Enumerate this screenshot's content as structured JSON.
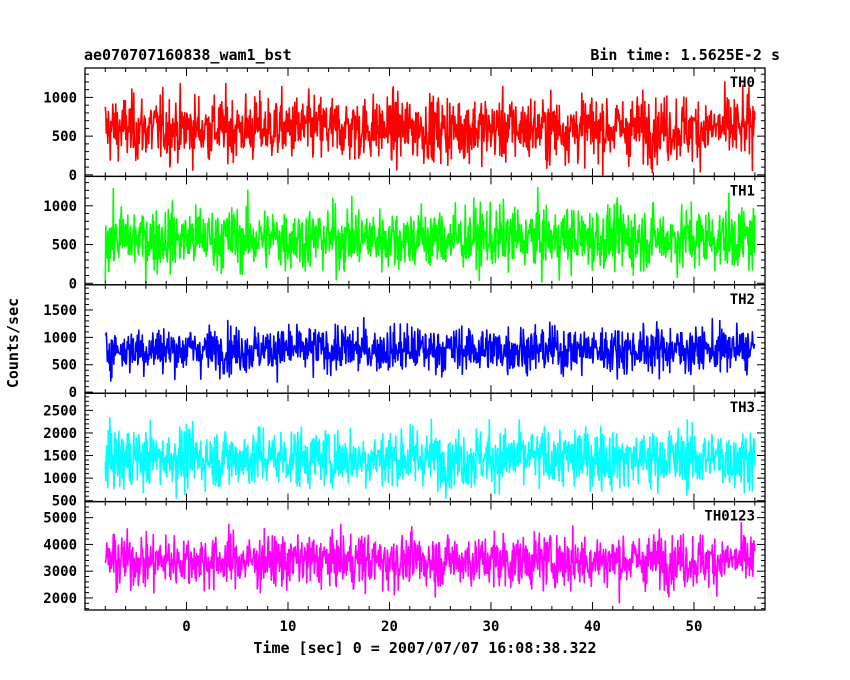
{
  "chart_data": {
    "type": "line",
    "title_left": "ae070707160838_wam1_bst",
    "title_right": "Bin time: 1.5625E-2 s",
    "xlabel": "Time [sec] 0 = 2007/07/07 16:08:38.322",
    "ylabel": "Counts/sec",
    "x_range": [
      -10,
      57
    ],
    "data_x_range": [
      -8,
      56
    ],
    "x_ticks": [
      0,
      10,
      20,
      30,
      40,
      50
    ],
    "panels": [
      {
        "name": "TH0",
        "color": "#ff0000",
        "ylim": [
          -20,
          1380
        ],
        "y_ticks": [
          0,
          500,
          1000
        ],
        "level": 600,
        "noise": 330,
        "floor": 0,
        "ceiling": 1380
      },
      {
        "name": "TH1",
        "color": "#00ff00",
        "ylim": [
          -20,
          1380
        ],
        "y_ticks": [
          0,
          500,
          1000
        ],
        "level": 580,
        "noise": 320,
        "floor": 0,
        "ceiling": 1380
      },
      {
        "name": "TH2",
        "color": "#0000ff",
        "ylim": [
          -20,
          1960
        ],
        "y_ticks": [
          0,
          500,
          1000,
          1500
        ],
        "level": 780,
        "noise": 330,
        "floor": 0,
        "ceiling": 1960
      },
      {
        "name": "TH3",
        "color": "#00ffff",
        "ylim": [
          480,
          2880
        ],
        "y_ticks": [
          500,
          1000,
          1500,
          2000,
          2500
        ],
        "level": 1450,
        "noise": 520,
        "floor": 480,
        "ceiling": 2880
      },
      {
        "name": "TH0123",
        "color": "#ff00ff",
        "ylim": [
          1550,
          5600
        ],
        "y_ticks": [
          2000,
          3000,
          4000,
          5000
        ],
        "level": 3400,
        "noise": 780,
        "floor": 1550,
        "ceiling": 5600
      }
    ],
    "grid": false,
    "legend": "panel labels top-right"
  }
}
